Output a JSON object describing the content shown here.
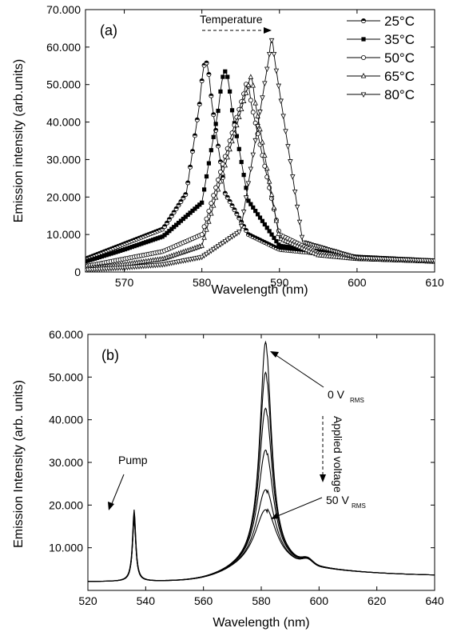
{
  "chart_data": [
    {
      "type": "line",
      "panel_label": "(a)",
      "xlabel": "Wavelength (nm)",
      "ylabel": "Emission intensity (arb.units)",
      "xlim": [
        565,
        610
      ],
      "ylim": [
        0,
        70000
      ],
      "xticks": [
        570,
        580,
        590,
        600,
        610
      ],
      "xtick_labels": [
        "570",
        "580",
        "590",
        "600",
        "610"
      ],
      "yticks": [
        0,
        10000,
        20000,
        30000,
        40000,
        50000,
        60000,
        70000
      ],
      "ytick_labels": [
        "0",
        "10.000",
        "20.000",
        "30.000",
        "40.000",
        "50.000",
        "60.000",
        "70.000"
      ],
      "legend_position": "top-right",
      "annotation": "Temperature",
      "series": [
        {
          "name": "25°C",
          "marker": "half-circle",
          "peak": 580.5,
          "height": 56000,
          "width": 1.6,
          "x": [
            565,
            570,
            575,
            578,
            580.5,
            583,
            586,
            590,
            600,
            610
          ],
          "y": [
            3500,
            7500,
            11500,
            21000,
            56000,
            21000,
            10000,
            6000,
            4000,
            3000
          ]
        },
        {
          "name": "35°C",
          "marker": "filled-square",
          "peak": 583.0,
          "height": 53500,
          "width": 1.8,
          "x": [
            565,
            570,
            575,
            580,
            583,
            586,
            590,
            600,
            610
          ],
          "y": [
            2800,
            6000,
            9500,
            18500,
            53500,
            19000,
            7000,
            4000,
            3000
          ]
        },
        {
          "name": "50°C",
          "marker": "open-circle",
          "peak": 585.8,
          "height": 50300,
          "width": 1.6,
          "x": [
            565,
            570,
            575,
            580,
            585.8,
            590,
            595,
            600,
            610
          ],
          "y": [
            1500,
            3500,
            5500,
            10000,
            50300,
            10000,
            5000,
            3800,
            2800
          ]
        },
        {
          "name": "65°C",
          "marker": "up-triangle",
          "peak": 586.3,
          "height": 52000,
          "width": 1.4,
          "x": [
            565,
            570,
            575,
            580,
            586.3,
            590,
            595,
            600,
            610
          ],
          "y": [
            1000,
            2000,
            3500,
            7000,
            52000,
            9000,
            4500,
            3500,
            2800
          ]
        },
        {
          "name": "80°C",
          "marker": "down-triangle",
          "peak": 589.0,
          "height": 61800,
          "width": 1.2,
          "x": [
            565,
            570,
            575,
            580,
            585,
            589,
            593,
            600,
            610
          ],
          "y": [
            600,
            1200,
            2000,
            4000,
            11000,
            61800,
            8000,
            3800,
            3000
          ]
        }
      ]
    },
    {
      "type": "line",
      "panel_label": "(b)",
      "xlabel": "Wavelength (nm)",
      "ylabel": "Emission Intensity (arb. units)",
      "xlim": [
        520,
        640
      ],
      "ylim": [
        0,
        60000
      ],
      "xticks": [
        520,
        540,
        560,
        580,
        600,
        620,
        640
      ],
      "xtick_labels": [
        "520",
        "540",
        "560",
        "580",
        "600",
        "620",
        "640"
      ],
      "yticks": [
        10000,
        20000,
        30000,
        40000,
        50000,
        60000
      ],
      "ytick_labels": [
        "10.000",
        "20.000",
        "30.000",
        "40.000",
        "50.000",
        "60.000"
      ],
      "annotations": {
        "pump": "Pump",
        "v0_main": "0 V",
        "v0_sub": "RMS",
        "v50_main": "50 V",
        "v50_sub": "RMS",
        "applied": "Applied voltage"
      },
      "pump_peak": {
        "x": 536,
        "values": [
          18800,
          18000,
          17200,
          16500
        ]
      },
      "series": [
        {
          "peak": 581.5,
          "height": 56800,
          "width": 2.4
        },
        {
          "peak": 581.5,
          "height": 49700,
          "width": 2.6
        },
        {
          "peak": 581.5,
          "height": 41300,
          "width": 2.8
        },
        {
          "peak": 581.5,
          "height": 31500,
          "width": 3.2
        },
        {
          "peak": 581.5,
          "height": 22200,
          "width": 3.8
        },
        {
          "peak": 581.5,
          "height": 17500,
          "width": 4.4
        }
      ]
    }
  ]
}
